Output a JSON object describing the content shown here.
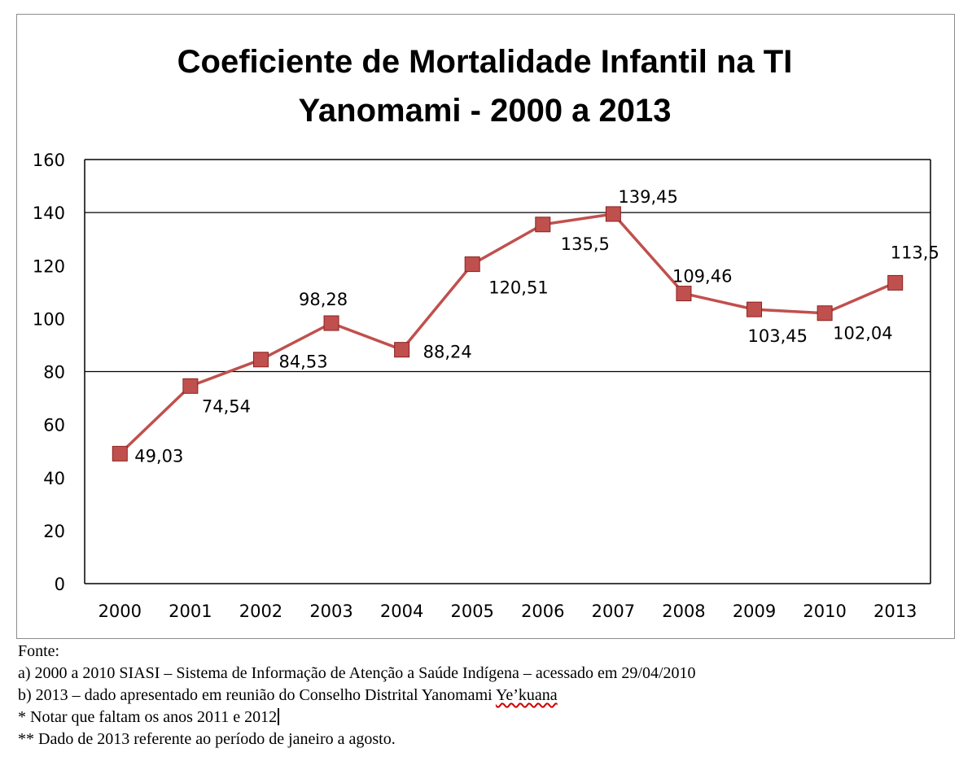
{
  "chart_data": {
    "type": "line",
    "title_line1": "Coeficiente de Mortalidade Infantil na TI",
    "title_line2": "Yanomami - 2000 a 2013",
    "categories": [
      "2000",
      "2001",
      "2002",
      "2003",
      "2004",
      "2005",
      "2006",
      "2007",
      "2008",
      "2009",
      "2010",
      "2013"
    ],
    "values": [
      49.03,
      74.54,
      84.53,
      98.28,
      88.24,
      120.51,
      135.5,
      139.45,
      109.46,
      103.45,
      102.04,
      113.5
    ],
    "data_labels": [
      "49,03",
      "74,54",
      "84,53",
      "98,28",
      "88,24",
      "120,51",
      "135,5",
      "139,45",
      "109,46",
      "103,45",
      "102,04",
      "113,5"
    ],
    "ylim": [
      0,
      160
    ],
    "yticks": [
      0,
      20,
      40,
      60,
      80,
      100,
      120,
      140,
      160
    ],
    "gridlines": [
      80,
      140
    ],
    "series_color": "#c0504d",
    "marker_color": "#c0504d",
    "marker_edge": "#8b2020",
    "grid": "horizontal (partial)",
    "legend": "none"
  },
  "footnotes": {
    "fonte": "Fonte:",
    "a_main": "a) 2000 a 2010 SIASI – Sistema de Informação de Atenção a Saúde Indígena – acessado em 29/04/2010",
    "b_main": "b) 2013 – dado apresentado em reunião do Conselho Distrital Yanomami ",
    "b_word": "Ye’kuana",
    "note1": "* Notar que faltam os anos 2011 e 2012",
    "note2": "** Dado de 2013 referente ao período de janeiro a agosto."
  }
}
